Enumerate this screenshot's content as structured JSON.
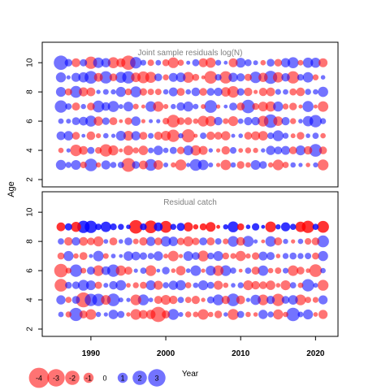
{
  "chart_data": {
    "type": "scatter",
    "ylabel": "Age",
    "xlabel": "Year",
    "x_ticks": [
      "1990",
      "2000",
      "2010",
      "2020"
    ],
    "x_tick_values": [
      1990,
      2000,
      2010,
      2020
    ],
    "xlim": [
      1983.5,
      2023
    ],
    "colors": {
      "negative": "#ff0000",
      "positive": "#0000ff",
      "frame": "#000000",
      "panel_title": "#808080"
    },
    "panels": [
      {
        "title": "Joint sample residuals log(N)",
        "ylim": [
          1.5,
          11.4
        ],
        "y_ticks": [
          "2",
          "4",
          "6",
          "8",
          "10"
        ],
        "y_tick_values": [
          2,
          4,
          6,
          8,
          10
        ],
        "years": [
          1986,
          2021
        ],
        "ages": [
          3,
          4,
          5,
          6,
          7,
          8,
          9,
          10
        ],
        "marker_opacity": 0.55,
        "residuals": [
          {
            "year": 1986,
            "age": 10,
            "value": 2.0
          },
          {
            "year": 1990,
            "age": 10,
            "value": -1.5
          },
          {
            "year": 1993,
            "age": 10,
            "value": -1.2
          },
          {
            "year": 1995,
            "age": 10,
            "value": -2.0
          },
          {
            "year": 1996,
            "age": 10,
            "value": 1.3
          },
          {
            "year": 2017,
            "age": 10,
            "value": 1.2
          },
          {
            "year": 1990,
            "age": 9,
            "value": 1.6
          },
          {
            "year": 1992,
            "age": 9,
            "value": 1.5
          },
          {
            "year": 1995,
            "age": 9,
            "value": 1.5
          },
          {
            "year": 1997,
            "age": 9,
            "value": -1.4
          },
          {
            "year": 2006,
            "age": 9,
            "value": -1.6
          },
          {
            "year": 2008,
            "age": 9,
            "value": -1.5
          },
          {
            "year": 2012,
            "age": 9,
            "value": 1.3
          },
          {
            "year": 2014,
            "age": 9,
            "value": 1.7
          },
          {
            "year": 2017,
            "age": 9,
            "value": -1.5
          },
          {
            "year": 1988,
            "age": 8,
            "value": 1.4
          },
          {
            "year": 1996,
            "age": 8,
            "value": 1.2
          },
          {
            "year": 2009,
            "age": 8,
            "value": -1.3
          },
          {
            "year": 1986,
            "age": 7,
            "value": 1.5
          },
          {
            "year": 1991,
            "age": 7,
            "value": 1.4
          },
          {
            "year": 2006,
            "age": 7,
            "value": 1.6
          },
          {
            "year": 2011,
            "age": 7,
            "value": 1.8
          },
          {
            "year": 2019,
            "age": 7,
            "value": 1.2
          },
          {
            "year": 1990,
            "age": 6,
            "value": 1.2
          },
          {
            "year": 2001,
            "age": 6,
            "value": -1.6
          },
          {
            "year": 2014,
            "age": 6,
            "value": 1.8
          },
          {
            "year": 2020,
            "age": 6,
            "value": 1.5
          },
          {
            "year": 2001,
            "age": 5,
            "value": -1.5
          },
          {
            "year": 2003,
            "age": 5,
            "value": -1.7
          },
          {
            "year": 1988,
            "age": 4,
            "value": -1.3
          },
          {
            "year": 1992,
            "age": 4,
            "value": -1.5
          },
          {
            "year": 2020,
            "age": 4,
            "value": 1.6
          },
          {
            "year": 1990,
            "age": 3,
            "value": 1.6
          },
          {
            "year": 1995,
            "age": 3,
            "value": -1.9
          },
          {
            "year": 1998,
            "age": 3,
            "value": 1.4
          },
          {
            "year": 2004,
            "age": 3,
            "value": 1.4
          }
        ]
      },
      {
        "title": "Residual catch",
        "ylim": [
          1.5,
          11.4
        ],
        "y_ticks": [
          "2",
          "4",
          "6",
          "8",
          "10"
        ],
        "y_tick_values": [
          2,
          4,
          6,
          8,
          10
        ],
        "years": [
          1986,
          2021
        ],
        "ages": [
          3,
          4,
          5,
          6,
          7,
          8,
          9
        ],
        "marker_opacity": 0.55,
        "age9_opacity": 0.8,
        "residuals": [
          {
            "year": 1996,
            "age": 9,
            "value": -1.8
          },
          {
            "year": 1998,
            "age": 9,
            "value": -1.6
          },
          {
            "year": 1989,
            "age": 9,
            "value": 1.5
          },
          {
            "year": 1990,
            "age": 9,
            "value": 1.5
          },
          {
            "year": 2000,
            "age": 9,
            "value": -1.4
          },
          {
            "year": 2019,
            "age": 9,
            "value": -1.5
          },
          {
            "year": 2021,
            "age": 9,
            "value": -1.4
          },
          {
            "year": 2021,
            "age": 8,
            "value": 1.4
          },
          {
            "year": 2011,
            "age": 8,
            "value": 1.2
          },
          {
            "year": 1986,
            "age": 6,
            "value": -1.8
          },
          {
            "year": 1988,
            "age": 6,
            "value": 1.5
          },
          {
            "year": 1993,
            "age": 6,
            "value": 1.5
          },
          {
            "year": 2020,
            "age": 6,
            "value": -1.6
          },
          {
            "year": 1986,
            "age": 5,
            "value": -1.6
          },
          {
            "year": 2019,
            "age": 5,
            "value": 1.5
          },
          {
            "year": 1989,
            "age": 4,
            "value": -2.2
          },
          {
            "year": 1990,
            "age": 4,
            "value": 1.5
          },
          {
            "year": 1991,
            "age": 4,
            "value": 1.5
          },
          {
            "year": 1993,
            "age": 4,
            "value": 1.6
          },
          {
            "year": 2009,
            "age": 4,
            "value": 1.6
          },
          {
            "year": 2015,
            "age": 4,
            "value": -1.5
          },
          {
            "year": 1988,
            "age": 3,
            "value": 1.7
          },
          {
            "year": 1999,
            "age": 3,
            "value": -2.3
          },
          {
            "year": 2017,
            "age": 3,
            "value": 1.8
          }
        ]
      }
    ],
    "legend": [
      {
        "label": "-4",
        "value": -4
      },
      {
        "label": "-3",
        "value": -3
      },
      {
        "label": "-2",
        "value": -2
      },
      {
        "label": "-1",
        "value": -1
      },
      {
        "label": "0",
        "value": 0
      },
      {
        "label": "1",
        "value": 1
      },
      {
        "label": "2",
        "value": 2
      },
      {
        "label": "3",
        "value": 3
      }
    ]
  }
}
